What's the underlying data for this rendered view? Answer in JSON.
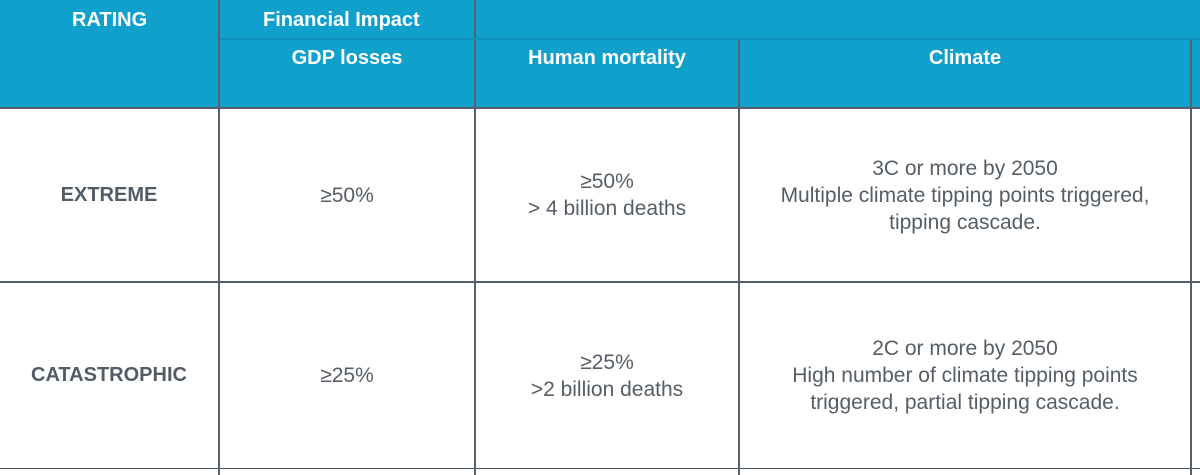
{
  "header": {
    "rating": "RATING",
    "financial_impact": "Financial Impact",
    "gdp_losses": "GDP losses",
    "human_mortality": "Human mortality",
    "climate": "Climate"
  },
  "rows": [
    {
      "rating": "EXTREME",
      "gdp": "≥50%",
      "mortality": [
        "≥50%",
        "> 4 billion deaths"
      ],
      "climate": [
        "3C or more by 2050",
        "Multiple climate tipping points triggered,",
        "tipping cascade."
      ]
    },
    {
      "rating": "CATASTROPHIC",
      "gdp": "≥25%",
      "mortality": [
        "≥25%",
        ">2 billion deaths"
      ],
      "climate": [
        "2C or more by 2050",
        "High number of climate tipping points",
        "triggered, partial tipping cascade."
      ]
    }
  ],
  "colors": {
    "header_bg": "#0fa0cc",
    "header_text": "#ffffff",
    "body_text": "#555e66",
    "grid": "#55606a"
  }
}
